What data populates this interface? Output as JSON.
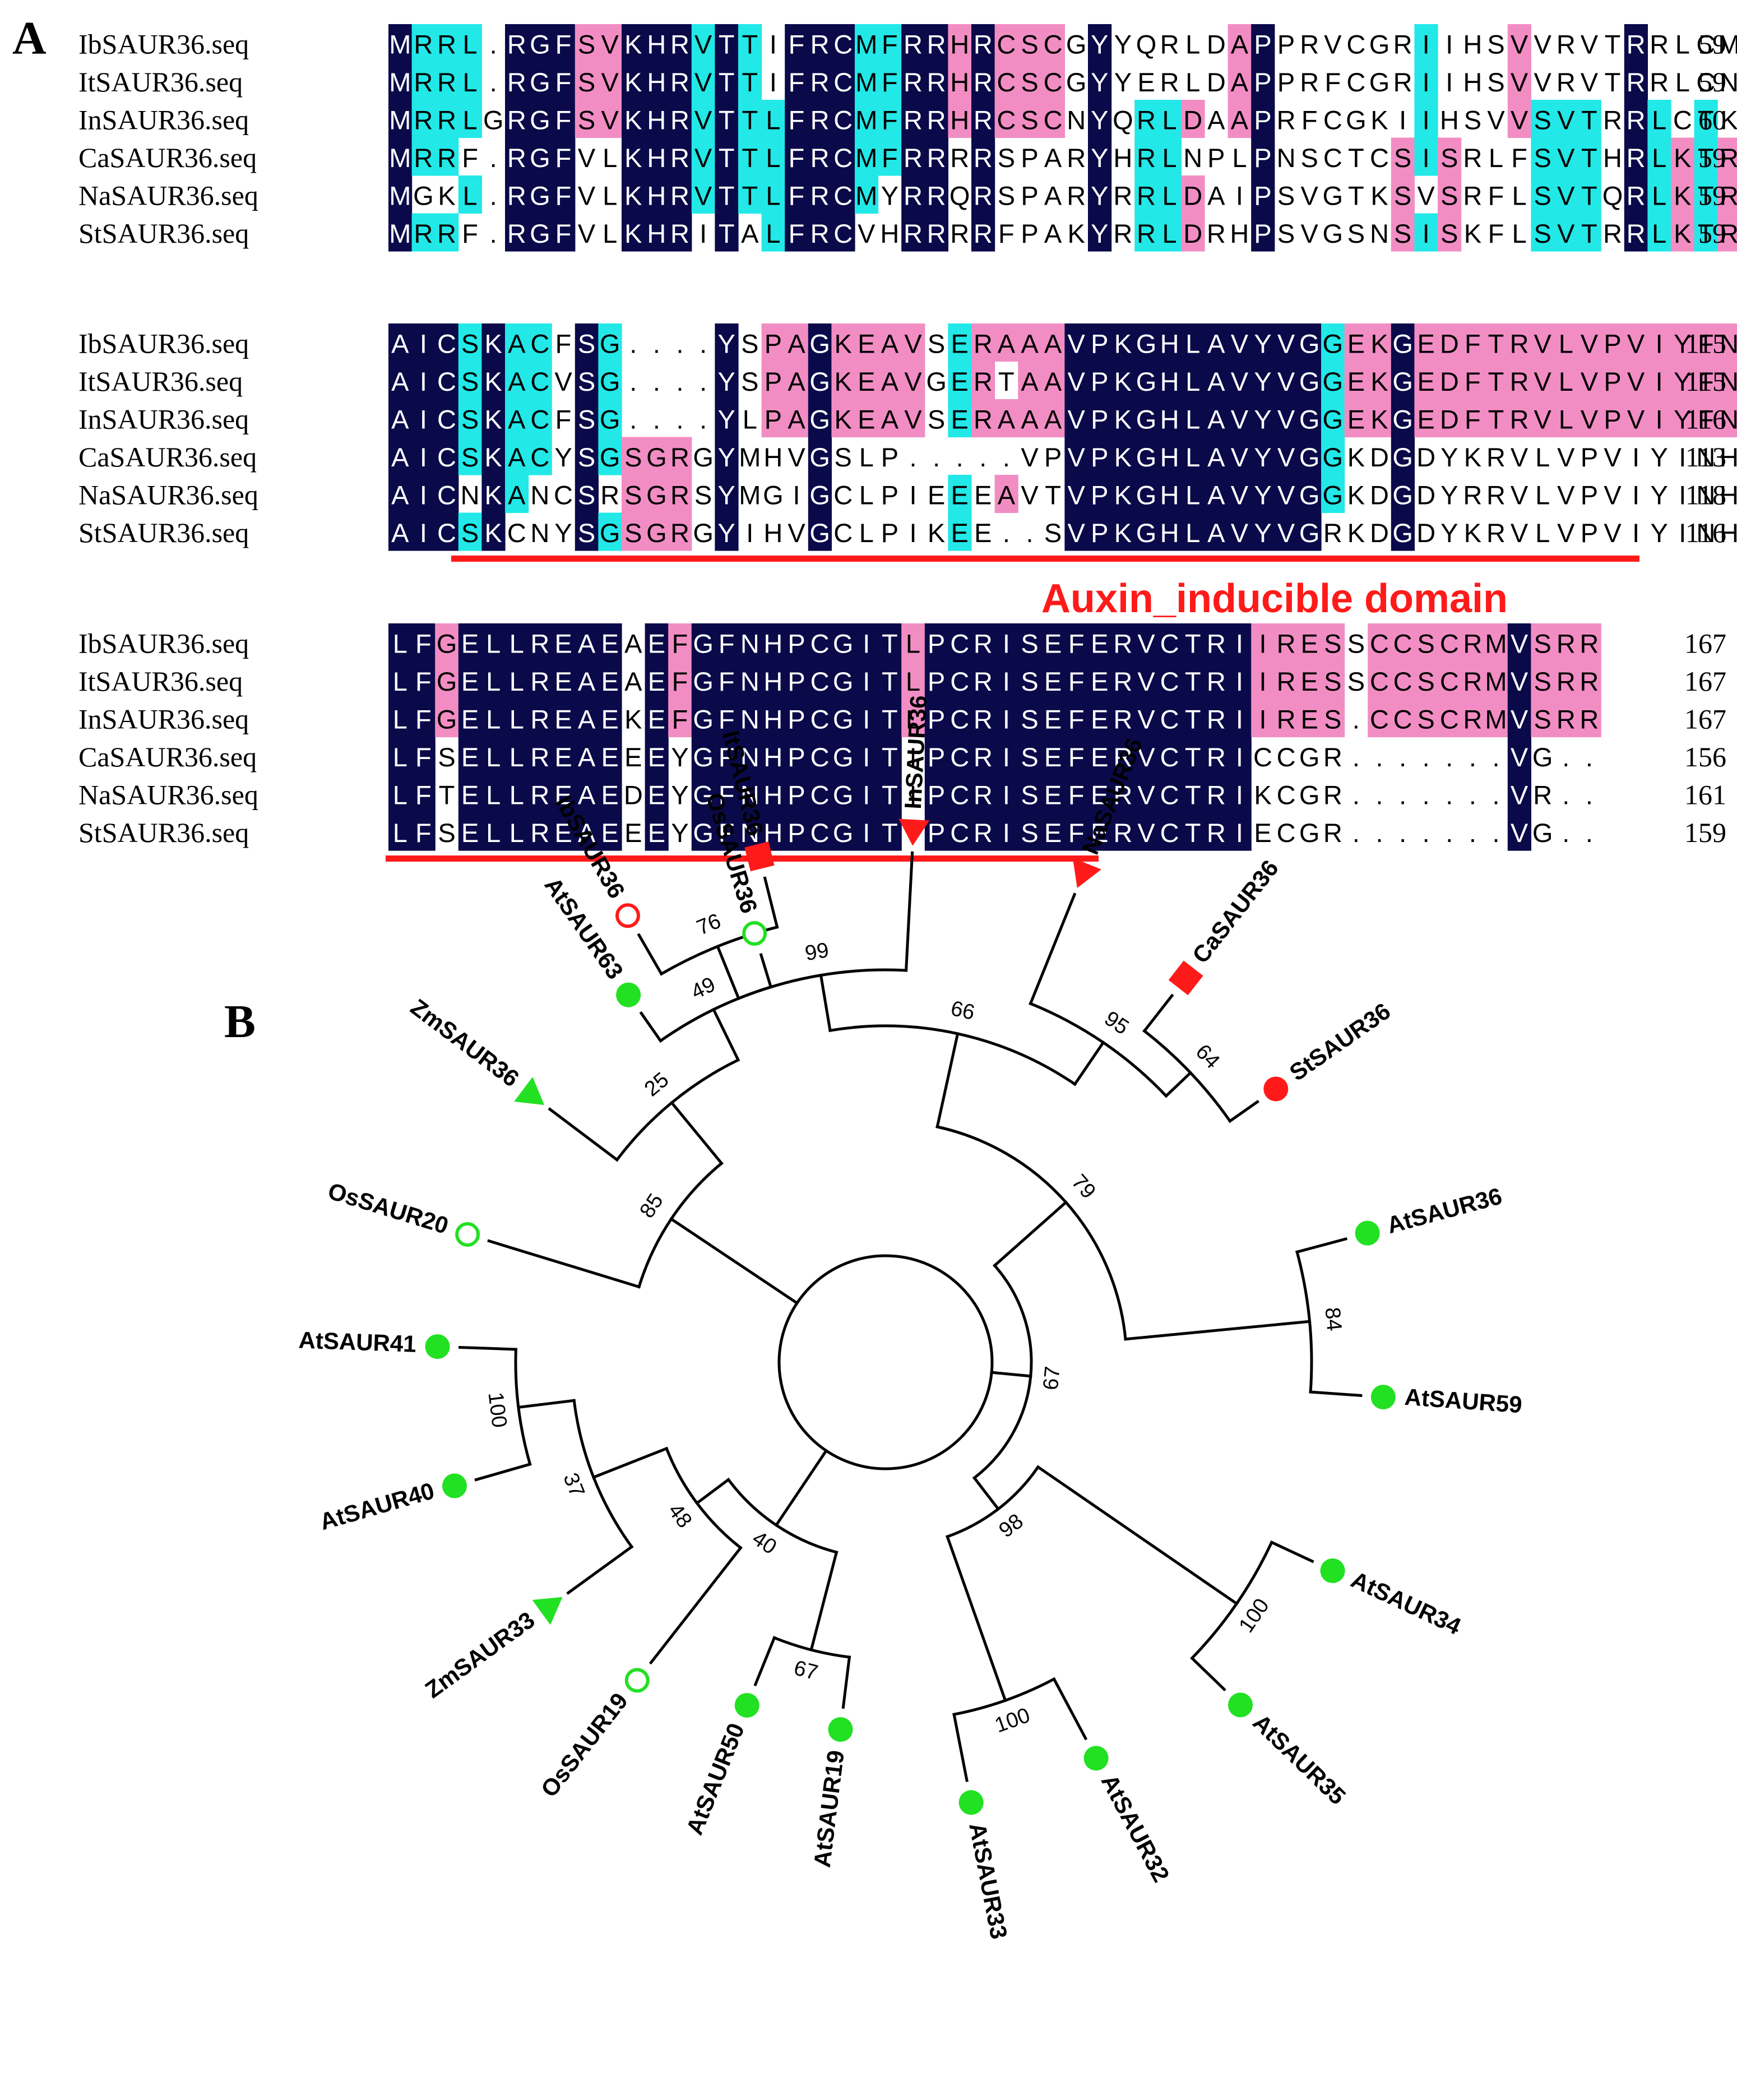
{
  "panel_a_label": "A",
  "panel_b_label": "B",
  "alignment": {
    "colors": {
      "identical": "#0a0a4a",
      "high": "#22e8e8",
      "low": "#f28dc4",
      "text_dark_bg": "#ffffff",
      "text_light_bg": "#000000",
      "domain": "#ff1a1a"
    },
    "domain_label": "Auxin_inducible domain",
    "blocks": [
      {
        "rows": [
          {
            "name": "IbSAUR36.seq",
            "seq": "MRRL.RGFSVKHRVTTIFRCMFRRHRCSCGYYQRLDAPPRVCGRIIHSVVRVTRRLCMKAK",
            "end": "59"
          },
          {
            "name": "ItSAUR36.seq",
            "seq": "MRRL.RGFSVKHRVTTIFRCMFRRHRCSCGYYERLDAPPRFCGRIIHSVVRVTRRLCNKAK",
            "end": "59"
          },
          {
            "name": "InSAUR36.seq",
            "seq": "MRRLGRGFSVKHRVTTLFRCMFRRHRCSCNYQRLDAAPRFCGKIIHSVVSVTRRLCTKAK",
            "end": "60"
          },
          {
            "name": "CaSAUR36.seq",
            "seq": "MRRF.RGFVLKHRVTTLFRCMFRRRRSPARYHRLNPLPNSCTCSISRLFSVTHRLKTRAK",
            "end": "59"
          },
          {
            "name": "NaSAUR36.seq",
            "seq": "MGKL.RGFVLKHRVTTLFRCMYRRQRSPARYRRLDAIPSVGTKSVSRFLSVTQRLKTRAK",
            "end": "59"
          },
          {
            "name": "StSAUR36.seq",
            "seq": "MRRF.RGFVLKHRITALFRCVHRRRRFPAKYRRLDRHPSVGSNSISKFLSVTRRLKTRAK",
            "end": "59"
          }
        ]
      },
      {
        "rows": [
          {
            "name": "IbSAUR36.seq",
            "seq": "AICSKACFSG....YSPAGKEAVSERAAAVPKGHLAVYVGGEKGEDFTRVLVPVIYFNHP",
            "end": "115"
          },
          {
            "name": "ItSAUR36.seq",
            "seq": "AICSKACVSG....YSPAGKEAVGERTAAVPKGHLAVYVGGEKGEDFTRVLVPVIYFNHP",
            "end": "115"
          },
          {
            "name": "InSAUR36.seq",
            "seq": "AICSKACFSG....YLPAGKEAVSERAAAVPKGHLAVYVGGEKGEDFTRVLVPVIYFNHP",
            "end": "116"
          },
          {
            "name": "CaSAUR36.seq",
            "seq": "AICSKACYSGSGRGYMHVGSLP.....VPVPKGHLAVYVGGKDGDYKRVLVPVIYINHP",
            "end": "113"
          },
          {
            "name": "NaSAUR36.seq",
            "seq": "AICNKANCSRSGRSYMGIGCLPIEEEAVTVPKGHLAVYVGGKDGDYRRVLVPVIYINHP",
            "end": "118"
          },
          {
            "name": "StSAUR36.seq",
            "seq": "AICSKCNYSGSGRGYIHVGCLPIKEE..SVPKGHLAVYVGRKDGDYKRVLVPVIYINHP",
            "end": "116"
          }
        ]
      },
      {
        "rows": [
          {
            "name": "IbSAUR36.seq",
            "seq": "LFGELLREAEAEFGFNHPCGITLPCRISEFERVCTRIIRESSCCSCRMVSRR",
            "end": "167"
          },
          {
            "name": "ItSAUR36.seq",
            "seq": "LFGELLREAEAEFGFNHPCGITLPCRISEFERVCTRIIRESSCCSCRMVSRR",
            "end": "167"
          },
          {
            "name": "InSAUR36.seq",
            "seq": "LFGELLREAEKEFGFNHPCGITLPCRISEFERVCTRIIRES.CCSCRMVSRR",
            "end": "167"
          },
          {
            "name": "CaSAUR36.seq",
            "seq": "LFSELLREAEEEYGFNHPCGITIPCRISEFERVCTRICCGR.......VG..",
            "end": "156"
          },
          {
            "name": "NaSAUR36.seq",
            "seq": "LFTELLREAEDEYGFNHPCGITIPCRISEFERVCTRIKCGR.......VR..",
            "end": "161"
          },
          {
            "name": "StSAUR36.seq",
            "seq": "LFSELLREAEEEYGFNHPCGITIPCRISEFERVCTRIECGR.......VG..",
            "end": "159"
          }
        ]
      }
    ]
  },
  "tree": {
    "leaves": [
      {
        "label": "IbSAUR36",
        "marker": "open-circle",
        "color": "#ff1a1a"
      },
      {
        "label": "ItSAUR36",
        "marker": "square",
        "color": "#ff1a1a"
      },
      {
        "label": "InSAUR36",
        "marker": "triangle",
        "color": "#ff1a1a"
      },
      {
        "label": "NaSAUR36",
        "marker": "triangle",
        "color": "#ff1a1a"
      },
      {
        "label": "CaSAUR36",
        "marker": "square",
        "color": "#ff1a1a"
      },
      {
        "label": "StSAUR36",
        "marker": "filled-circle",
        "color": "#ff1a1a"
      },
      {
        "label": "AtSAUR36",
        "marker": "filled-circle",
        "color": "#22e022"
      },
      {
        "label": "AtSAUR59",
        "marker": "filled-circle",
        "color": "#22e022"
      },
      {
        "label": "AtSAUR34",
        "marker": "filled-circle",
        "color": "#22e022"
      },
      {
        "label": "AtSAUR35",
        "marker": "filled-circle",
        "color": "#22e022"
      },
      {
        "label": "AtSAUR32",
        "marker": "filled-circle",
        "color": "#22e022"
      },
      {
        "label": "AtSAUR33",
        "marker": "filled-circle",
        "color": "#22e022"
      },
      {
        "label": "AtSAUR19",
        "marker": "filled-circle",
        "color": "#22e022"
      },
      {
        "label": "AtSAUR50",
        "marker": "filled-circle",
        "color": "#22e022"
      },
      {
        "label": "OsSAUR19",
        "marker": "open-circle",
        "color": "#22e022"
      },
      {
        "label": "ZmSAUR33",
        "marker": "triangle",
        "color": "#22e022"
      },
      {
        "label": "AtSAUR40",
        "marker": "filled-circle",
        "color": "#22e022"
      },
      {
        "label": "AtSAUR41",
        "marker": "filled-circle",
        "color": "#22e022"
      },
      {
        "label": "OsSAUR20",
        "marker": "open-circle",
        "color": "#22e022"
      },
      {
        "label": "ZmSAUR36",
        "marker": "triangle",
        "color": "#22e022"
      },
      {
        "label": "AtSAUR63",
        "marker": "filled-circle",
        "color": "#22e022"
      },
      {
        "label": "OsSAUR36",
        "marker": "open-circle",
        "color": "#22e022"
      }
    ],
    "bootstrap": [
      "76",
      "99",
      "66",
      "95",
      "64",
      "79",
      "84",
      "67",
      "98",
      "100",
      "100",
      "67",
      "40",
      "48",
      "37",
      "100",
      "85",
      "25",
      "49"
    ]
  }
}
